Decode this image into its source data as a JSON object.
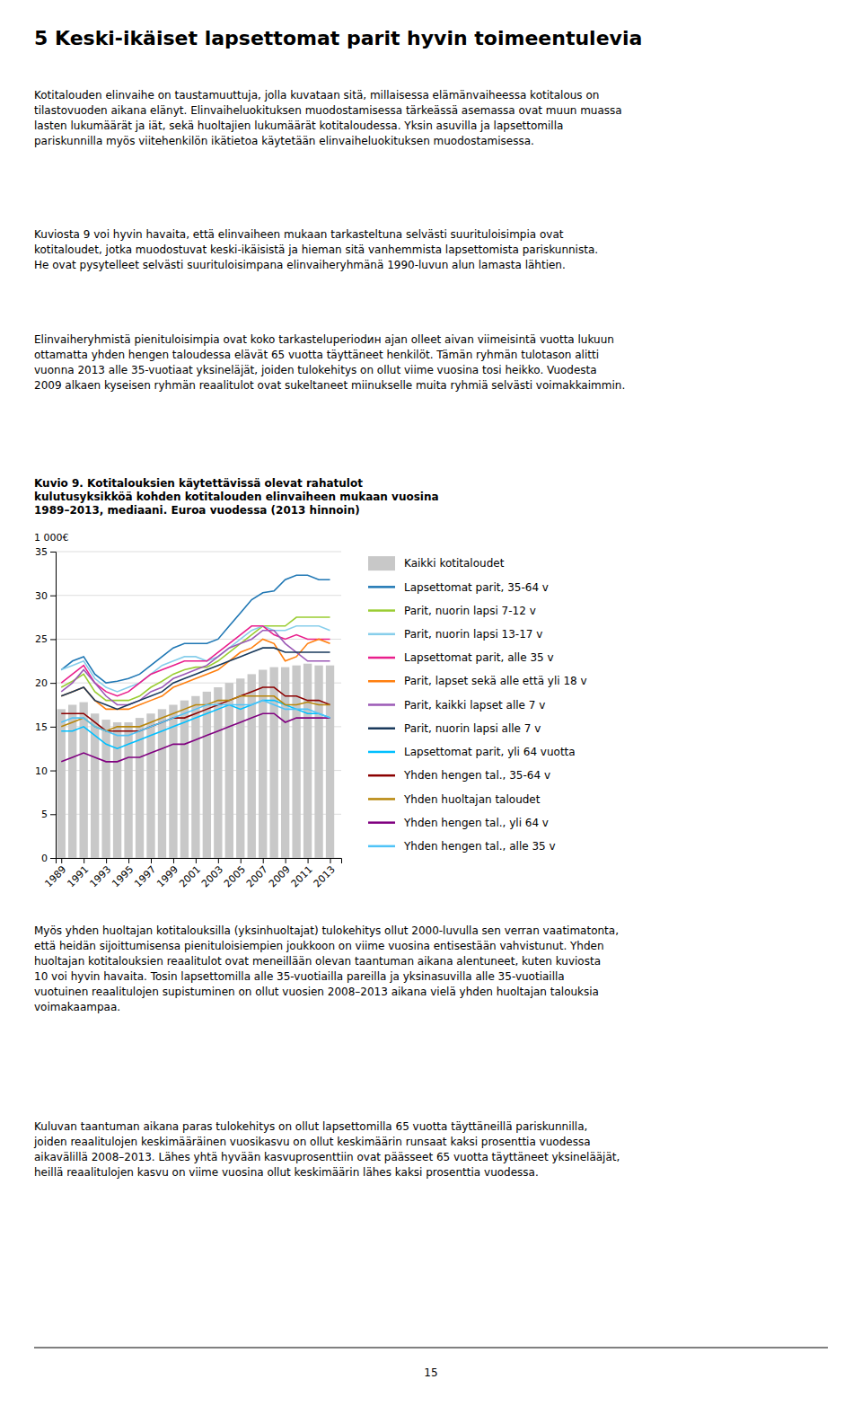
{
  "page": {
    "heading": "5 Keski-ikäiset lapsettomat parit hyvin toimeentulevia",
    "paragraphs_before": [
      "Kotitalouden elinvaihe on taustamuuttuja, jolla kuvataan sitä, millaisessa elämänvaiheessa kotitalous on\ntilastovuoden aikana elänyt. Elinvaiheluokituksen muodostamisessa tärkeässä asemassa ovat muun muassa\nlasten lukumäärät ja iät, sekä huoltajien lukumäärät kotitaloudessa. Yksin asuvilla ja lapsettomilla\npariskunnilla myös viitehenkilön ikätietoa käytetään elinvaiheluokituksen muodostamisessa.",
      "Kuviosta 9 voi hyvin havaita, että elinvaiheen mukaan tarkasteltuna selvästi suurituloisimpia ovat\nkotitaloudet, jotka muodostuvat keski-ikäisistä ja hieman sitä vanhemmista lapsettomista pariskunnista.\nHe ovat pysytelleet selvästi suurituloisimpana elinvaiheryhmänä 1990-luvun alun lamasta lähtien.",
      "Elinvaiheryhmistä pienituloisimpia ovat koko tarkasteluperiodин ajan olleet aivan viimeisintä vuotta lukuun\nottamatta yhden hengen taloudessa elävät 65 vuotta täyttäneet henkilöt. Tämän ryhmän tulotason alitti\nvuonna 2013 alle 35-vuotiaat yksinеläjät, joiden tulokehitys on ollut viime vuosina tosi heikko. Vuodesta\n2009 alkaen kyseisen ryhmän reaalitulot ovat sukeltaneet miinukselle muita ryhmiä selvästi voimakkaimmin."
    ],
    "paragraphs_after": [
      "Myös yhden huoltajan kotitalouksilla (yksinhuoltajat) tulokehitys ollut 2000-luvulla sen verran vaatimatonta,\nettä heidän sijoittumisensa pienituloisiempien joukkoon on viime vuosina entisestään vahvistunut. Yhden\nhuoltajan kotitalouksien reaalitulot ovat meneillään olevan taantuman aikana alentuneet, kuten kuviosta\n10 voi hyvin havaita. Tosin lapsettomilla alle 35-vuotiailla pareilla ja yksinasuvilla alle 35-vuotiailla\nvuotuinen reaalitulojen supistuminen on ollut vuosien 2008–2013 aikana vielä yhden huoltajan talouksia\nvoimakaampaa.",
      "Kuluvan taantuman aikana paras tulokehitys on ollut lapsettomilla 65 vuotta täyttäneillä pariskunnilla,\njoiden reaalitulojen keskimääräinen vuosikasvu on ollut keskimäärin runsaat kaksi prosenttia vuodessa\naikavälillä 2008–2013. Lähes yhtä hyvään kasvuprosenttiin ovat päässeet 65 vuotta täyttäneet yksinelääjät,\nheillä reaalitulojen kasvu on viime vuosina ollut keskimäärin lähes kaksi prosenttia vuodessa."
    ],
    "page_number": "15"
  },
  "chart_data": {
    "type": "bar",
    "title": "Kuvio 9. Kotitalouksien käytettävissä olevat rahatulot\nkulutusyksikköä kohden kotitalouden elinvaiheen mukaan vuosina\n1989–2013, mediaani. Euroa vuodessa (2013 hinnoin)",
    "ylabel": "1 000€",
    "x": [
      1989,
      1990,
      1991,
      1992,
      1993,
      1994,
      1995,
      1996,
      1997,
      1998,
      1999,
      2000,
      2001,
      2002,
      2003,
      2004,
      2005,
      2006,
      2007,
      2008,
      2009,
      2010,
      2011,
      2012,
      2013
    ],
    "xlim": [
      1988.5,
      2014.0
    ],
    "xticks": [
      1989,
      1991,
      1993,
      1995,
      1997,
      1999,
      2001,
      2003,
      2005,
      2007,
      2009,
      2011,
      2013
    ],
    "ylim": [
      0,
      35
    ],
    "yticks": [
      0,
      5,
      10,
      15,
      20,
      25,
      30,
      35
    ],
    "grid": true,
    "series": [
      {
        "name": "Kaikki kotitaloudet",
        "color": "#c8c8c8",
        "type": "bar",
        "values": [
          17.0,
          17.5,
          17.8,
          16.5,
          15.8,
          15.5,
          15.5,
          16.0,
          16.5,
          17.0,
          17.5,
          18.0,
          18.5,
          19.0,
          19.5,
          20.0,
          20.5,
          21.0,
          21.5,
          21.8,
          21.8,
          22.0,
          22.2,
          22.0,
          22.0
        ]
      },
      {
        "name": "Lapsettomat parit, 35-64 v",
        "color": "#1f77b4",
        "type": "line",
        "values": [
          21.5,
          22.5,
          23.0,
          21.0,
          20.0,
          20.2,
          20.5,
          21.0,
          22.0,
          23.0,
          24.0,
          24.5,
          24.5,
          24.5,
          25.0,
          26.5,
          28.0,
          29.5,
          30.3,
          30.5,
          31.8,
          32.3,
          32.3,
          31.8,
          31.8
        ]
      },
      {
        "name": "Parit, nuorin lapsi 7-12 v",
        "color": "#9acd32",
        "type": "line",
        "values": [
          19.5,
          20.2,
          21.0,
          19.0,
          18.0,
          18.0,
          18.0,
          18.5,
          19.5,
          20.2,
          21.0,
          21.5,
          21.8,
          21.8,
          22.5,
          23.5,
          24.5,
          25.5,
          26.5,
          26.5,
          26.5,
          27.5,
          27.5,
          27.5,
          27.5
        ]
      },
      {
        "name": "Parit, nuorin lapsi 13-17 v",
        "color": "#87ceeb",
        "type": "line",
        "values": [
          21.5,
          22.0,
          22.5,
          20.5,
          19.5,
          19.0,
          19.5,
          20.0,
          21.0,
          22.0,
          22.5,
          23.0,
          23.0,
          22.5,
          23.0,
          24.0,
          25.0,
          26.0,
          26.5,
          26.0,
          26.0,
          26.5,
          26.5,
          26.5,
          26.0
        ]
      },
      {
        "name": "Lapsettomat parit, alle 35 v",
        "color": "#e91e8c",
        "type": "line",
        "values": [
          20.0,
          21.0,
          22.0,
          20.0,
          19.0,
          18.5,
          19.0,
          20.0,
          21.0,
          21.5,
          22.0,
          22.5,
          22.5,
          22.5,
          23.5,
          24.5,
          25.5,
          26.5,
          26.5,
          25.5,
          25.0,
          25.5,
          25.0,
          25.0,
          25.0
        ]
      },
      {
        "name": "Parit, lapset sekä alle että yli 18 v",
        "color": "#ff7f0e",
        "type": "line",
        "values": [
          18.5,
          19.0,
          19.5,
          18.0,
          17.0,
          17.0,
          17.0,
          17.5,
          18.0,
          18.5,
          19.5,
          20.0,
          20.5,
          21.0,
          21.5,
          22.5,
          23.5,
          24.0,
          25.0,
          24.5,
          22.5,
          23.0,
          24.5,
          25.0,
          24.5
        ]
      },
      {
        "name": "Parit, kaikki lapset alle 7 v",
        "color": "#9b59b6",
        "type": "line",
        "values": [
          19.0,
          20.0,
          21.5,
          20.0,
          18.5,
          17.5,
          17.5,
          18.0,
          19.0,
          19.5,
          20.5,
          21.0,
          21.5,
          22.0,
          23.0,
          24.0,
          24.5,
          25.0,
          26.0,
          26.0,
          24.5,
          23.5,
          22.5,
          22.5,
          22.5
        ]
      },
      {
        "name": "Parit,  nuorin lapsi alle 7 v",
        "color": "#1a3a5c",
        "type": "line",
        "values": [
          18.5,
          19.0,
          19.5,
          18.0,
          17.5,
          17.0,
          17.5,
          18.0,
          18.5,
          19.0,
          20.0,
          20.5,
          21.0,
          21.5,
          22.0,
          22.5,
          23.0,
          23.5,
          24.0,
          24.0,
          23.5,
          23.5,
          23.5,
          23.5,
          23.5
        ]
      },
      {
        "name": "Lapsettomat parit, yli 64 vuotta",
        "color": "#00bfff",
        "type": "line",
        "values": [
          14.5,
          14.5,
          15.0,
          14.0,
          13.0,
          12.5,
          13.0,
          13.5,
          14.0,
          14.5,
          15.0,
          15.5,
          16.0,
          16.5,
          17.0,
          17.5,
          17.0,
          17.5,
          18.0,
          18.0,
          17.5,
          17.0,
          16.5,
          16.5,
          16.0
        ]
      },
      {
        "name": "Yhden hengen tal., 35-64 v",
        "color": "#8b0000",
        "type": "line",
        "values": [
          16.5,
          16.5,
          16.5,
          15.5,
          14.5,
          14.5,
          14.5,
          14.5,
          15.0,
          15.5,
          16.0,
          16.0,
          16.5,
          17.0,
          17.5,
          18.0,
          18.5,
          19.0,
          19.5,
          19.5,
          18.5,
          18.5,
          18.0,
          18.0,
          17.5
        ]
      },
      {
        "name": "Yhden huoltajan taloudet",
        "color": "#b8860b",
        "type": "line",
        "values": [
          15.0,
          15.5,
          16.0,
          15.0,
          14.5,
          15.0,
          15.0,
          15.0,
          15.5,
          16.0,
          16.5,
          17.0,
          17.5,
          17.5,
          18.0,
          18.0,
          18.5,
          18.5,
          18.5,
          18.5,
          17.5,
          17.5,
          17.8,
          17.5,
          17.5
        ]
      },
      {
        "name": "Yhden hengen tal., yli 64 v",
        "color": "#800080",
        "type": "line",
        "values": [
          11.0,
          11.5,
          12.0,
          11.5,
          11.0,
          11.0,
          11.5,
          11.5,
          12.0,
          12.5,
          13.0,
          13.0,
          13.5,
          14.0,
          14.5,
          15.0,
          15.5,
          16.0,
          16.5,
          16.5,
          15.5,
          16.0,
          16.0,
          16.0,
          16.0
        ]
      },
      {
        "name": "Yhden hengen tal.,  alle 35 v",
        "color": "#4fc3f7",
        "type": "line",
        "values": [
          15.5,
          16.0,
          16.0,
          15.0,
          14.5,
          14.0,
          14.0,
          14.5,
          15.0,
          15.5,
          16.0,
          16.5,
          17.0,
          17.5,
          17.5,
          17.5,
          17.5,
          17.5,
          18.0,
          17.5,
          17.0,
          17.0,
          17.0,
          16.5,
          16.0
        ]
      }
    ]
  }
}
